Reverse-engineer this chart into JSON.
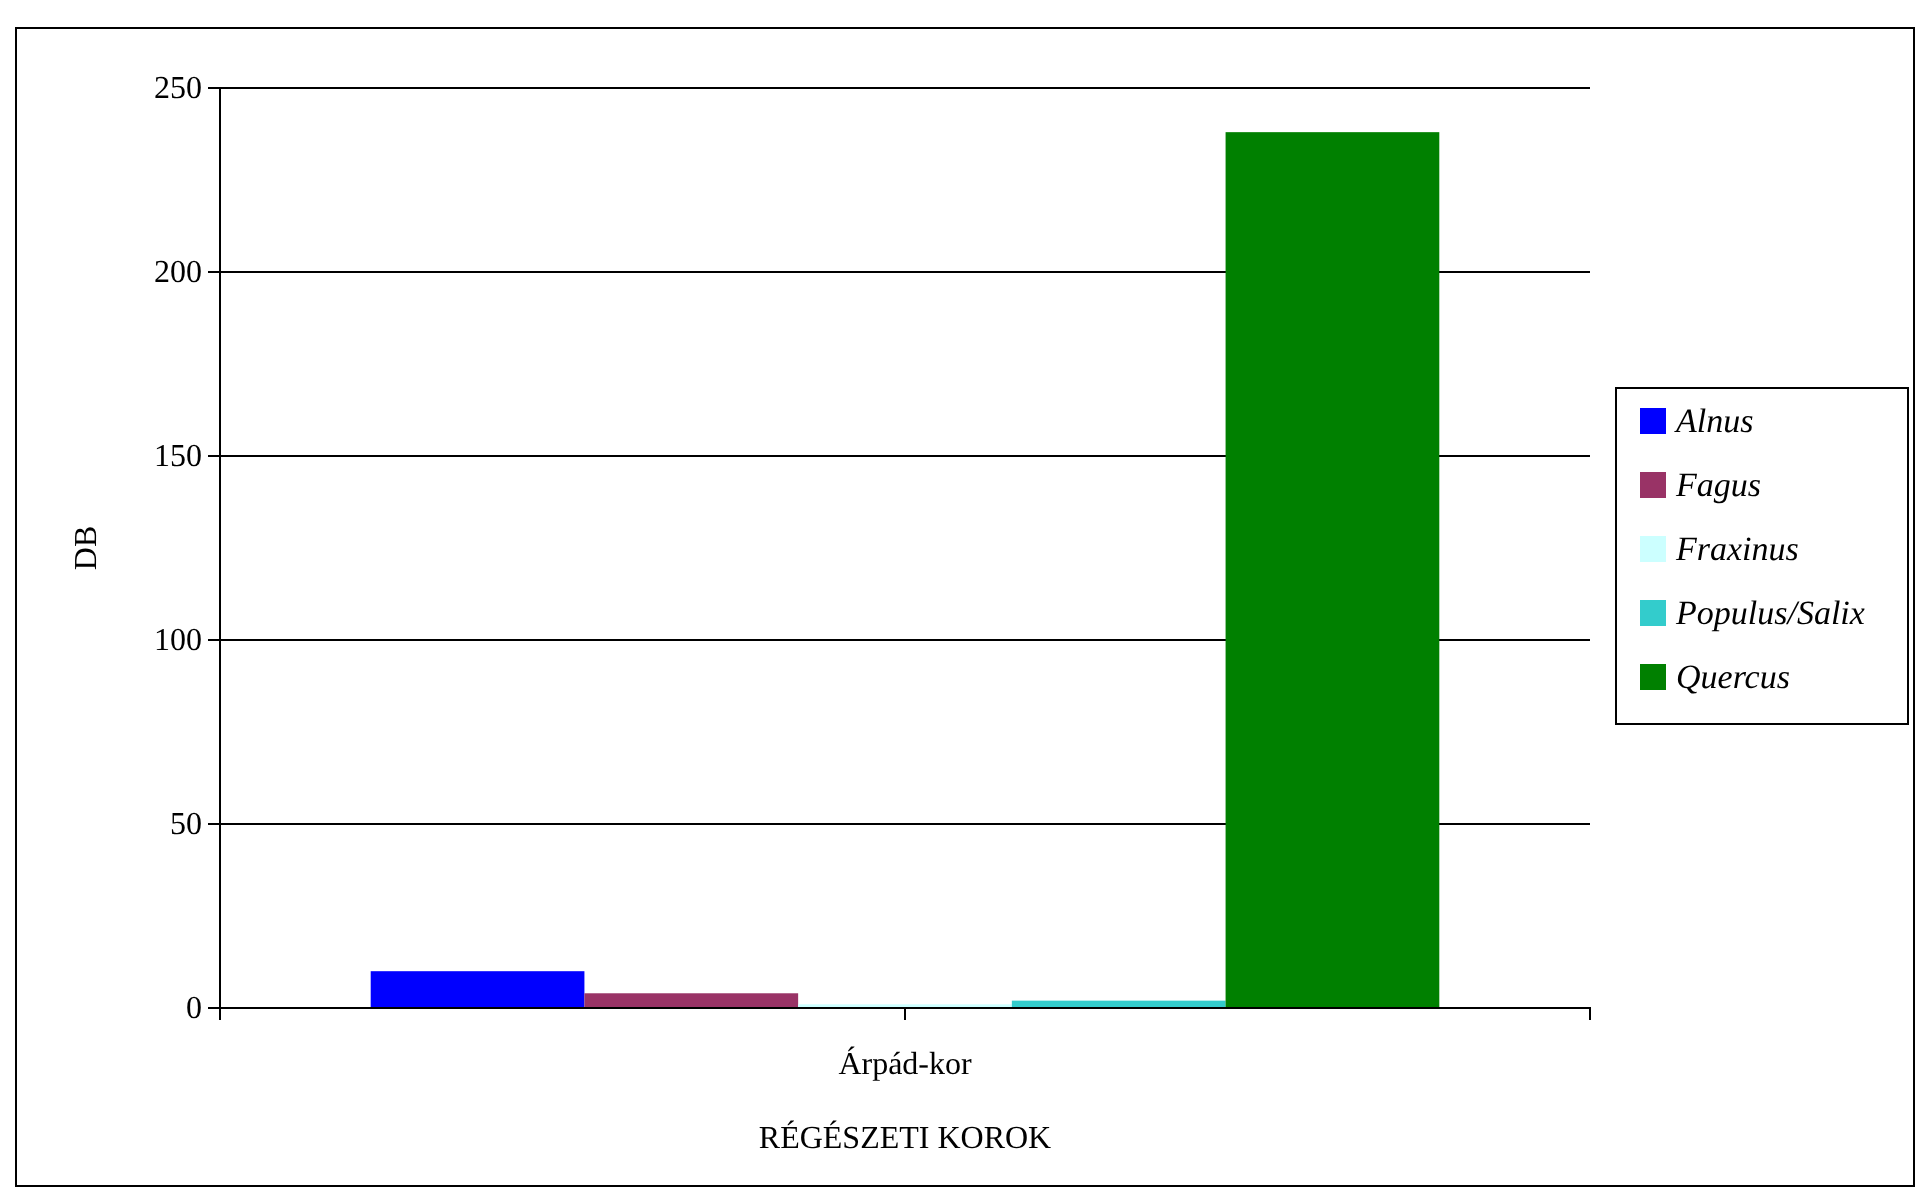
{
  "chart_data": {
    "type": "bar",
    "xlabel": "RÉGÉSZETI KOROK",
    "ylabel": "DB",
    "categories": [
      "Árpád-kor"
    ],
    "series": [
      {
        "name": "Alnus",
        "color": "#0000ff",
        "values": [
          10
        ]
      },
      {
        "name": "Fagus",
        "color": "#993366",
        "values": [
          4
        ]
      },
      {
        "name": "Fraxinus",
        "color": "#ccffff",
        "values": [
          1
        ]
      },
      {
        "name": "Populus/Salix",
        "color": "#33cccc",
        "values": [
          2
        ]
      },
      {
        "name": "Quercus",
        "color": "#008000",
        "values": [
          238
        ]
      }
    ],
    "ylim": [
      0,
      250
    ],
    "yticks": [
      0,
      50,
      100,
      150,
      200,
      250
    ],
    "grid": "y",
    "legend": "right"
  }
}
